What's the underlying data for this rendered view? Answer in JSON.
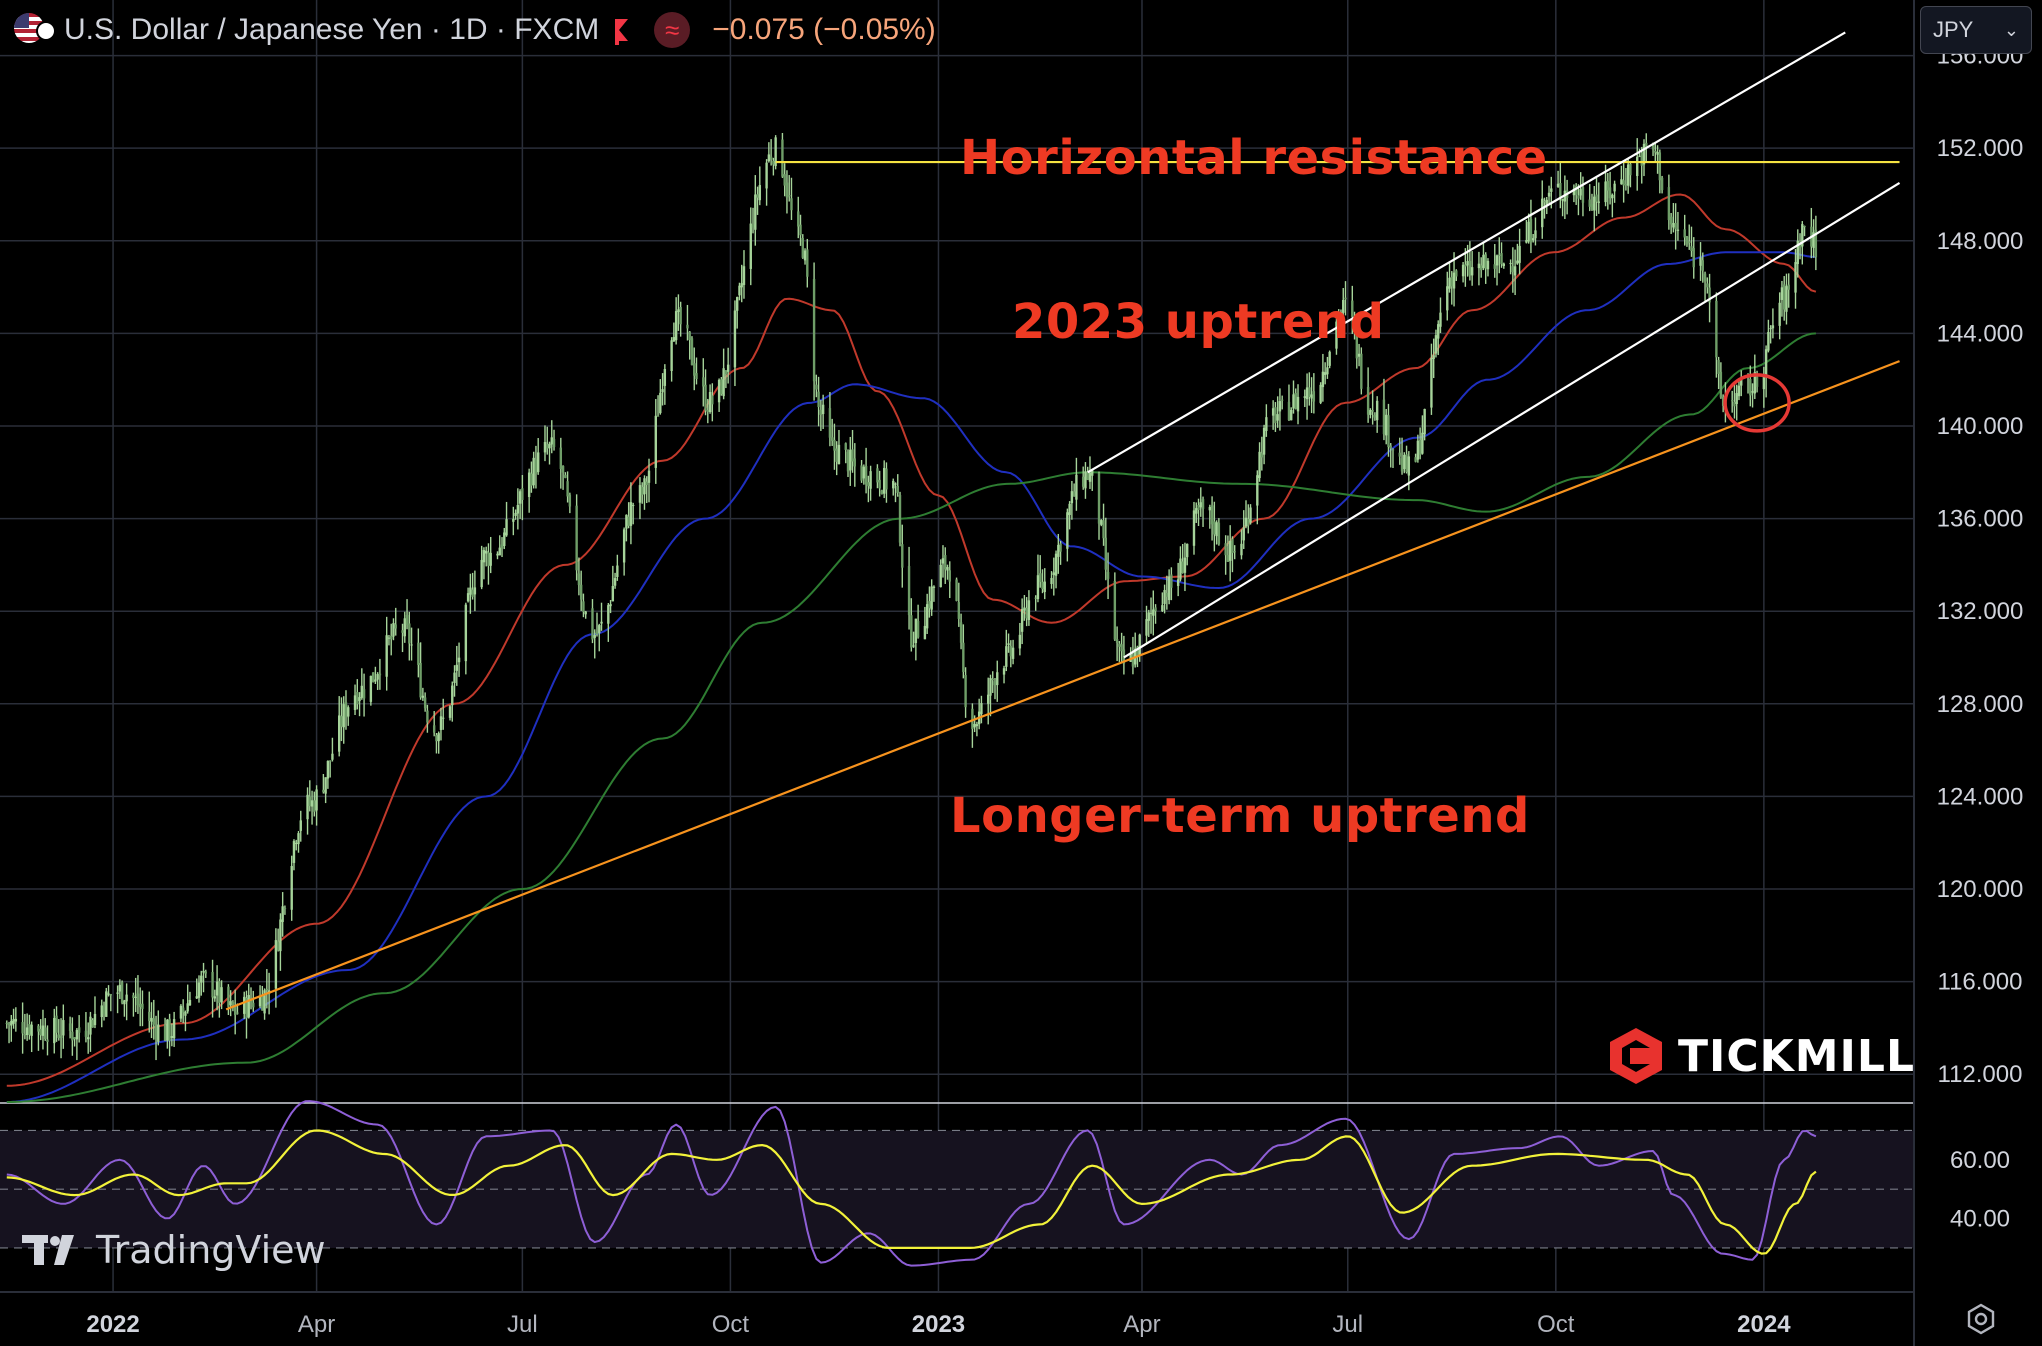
{
  "header": {
    "title": "U.S. Dollar / Japanese Yen · 1D · FXCM",
    "change": "−0.075 (−0.05%)",
    "indicator_glyph": "≈"
  },
  "currency_select": {
    "value": "JPY",
    "chevron": "⌄"
  },
  "annotations": {
    "horizontal_resistance": "Horizontal resistance",
    "uptrend_2023": "2023 uptrend",
    "longer_term_uptrend": "Longer-term uptrend"
  },
  "branding": {
    "tickmill": "TICKMILL",
    "tradingview": "TradingView"
  },
  "colors": {
    "background": "#000000",
    "candle": "#a6d49a",
    "ma_fast": "#c0392b",
    "ma_mid": "#1f2fbf",
    "ma_slow": "#2e7d32",
    "trend_long": "#f7931e",
    "resistance": "#f5e342",
    "channel": "#ffffff",
    "rsi": "#8e5fd6",
    "rsi_signal": "#f2f23a",
    "circle": "#e53935",
    "annotation": "#ee3a23"
  },
  "chart_data": {
    "type": "candlestick",
    "symbol": "USDJPY",
    "interval": "1D",
    "x_ticks": [
      "2022",
      "Apr",
      "Jul",
      "Oct",
      "2023",
      "Apr",
      "Jul",
      "Oct",
      "2024"
    ],
    "y_ticks": [
      "156.000",
      "152.000",
      "148.000",
      "144.000",
      "140.000",
      "136.000",
      "132.000",
      "128.000",
      "124.000",
      "120.000",
      "116.000",
      "112.000"
    ],
    "ylim": [
      110.8,
      158.4
    ],
    "x_range": [
      "2021-11-12",
      "2024-05-03"
    ],
    "price_path": [
      [
        "2021-11-15",
        114.2
      ],
      [
        "2021-12-15",
        113.8
      ],
      [
        "2022-01-04",
        115.6
      ],
      [
        "2022-01-25",
        113.8
      ],
      [
        "2022-02-10",
        116.0
      ],
      [
        "2022-02-24",
        114.7
      ],
      [
        "2022-03-07",
        115.3
      ],
      [
        "2022-03-28",
        123.6
      ],
      [
        "2022-04-20",
        128.6
      ],
      [
        "2022-05-09",
        131.2
      ],
      [
        "2022-05-24",
        126.9
      ],
      [
        "2022-06-15",
        134.4
      ],
      [
        "2022-07-14",
        139.0
      ],
      [
        "2022-08-02",
        131.0
      ],
      [
        "2022-08-22",
        137.0
      ],
      [
        "2022-09-07",
        144.5
      ],
      [
        "2022-09-22",
        141.0
      ],
      [
        "2022-10-21",
        151.9
      ],
      [
        "2022-11-01",
        148.0
      ],
      [
        "2022-11-10",
        140.5
      ],
      [
        "2022-11-15",
        139.0
      ],
      [
        "2022-11-29",
        138.0
      ],
      [
        "2022-12-12",
        137.5
      ],
      [
        "2022-12-20",
        131.0
      ],
      [
        "2023-01-05",
        134.0
      ],
      [
        "2023-01-16",
        127.2
      ],
      [
        "2023-01-31",
        130.0
      ],
      [
        "2023-02-14",
        133.0
      ],
      [
        "2023-03-08",
        137.9
      ],
      [
        "2023-03-24",
        129.7
      ],
      [
        "2023-04-13",
        133.0
      ],
      [
        "2023-04-28",
        136.3
      ],
      [
        "2023-05-11",
        134.5
      ],
      [
        "2023-05-30",
        140.5
      ],
      [
        "2023-06-15",
        141.5
      ],
      [
        "2023-06-30",
        145.1
      ],
      [
        "2023-07-11",
        141.0
      ],
      [
        "2023-07-28",
        138.1
      ],
      [
        "2023-08-17",
        146.6
      ],
      [
        "2023-09-08",
        147.0
      ],
      [
        "2023-10-03",
        150.2
      ],
      [
        "2023-10-20",
        149.9
      ],
      [
        "2023-11-13",
        151.9
      ],
      [
        "2023-11-22",
        148.5
      ],
      [
        "2023-12-05",
        147.0
      ],
      [
        "2023-12-14",
        141.0
      ],
      [
        "2023-12-27",
        141.7
      ],
      [
        "2024-01-10",
        145.5
      ],
      [
        "2024-01-19",
        148.6
      ],
      [
        "2024-01-24",
        147.8
      ]
    ],
    "moving_averages": [
      {
        "role": "fast",
        "points": [
          [
            "2021-11-15",
            111.5
          ],
          [
            "2022-02-01",
            114.2
          ],
          [
            "2022-04-01",
            118.5
          ],
          [
            "2022-06-01",
            128.0
          ],
          [
            "2022-07-20",
            134.0
          ],
          [
            "2022-09-01",
            138.5
          ],
          [
            "2022-10-06",
            142.5
          ],
          [
            "2022-10-26",
            145.5
          ],
          [
            "2022-11-15",
            145.0
          ],
          [
            "2022-12-05",
            141.5
          ],
          [
            "2023-01-01",
            137.0
          ],
          [
            "2023-01-25",
            132.5
          ],
          [
            "2023-02-20",
            131.5
          ],
          [
            "2023-03-25",
            133.3
          ],
          [
            "2023-04-20",
            133.5
          ],
          [
            "2023-05-25",
            136.0
          ],
          [
            "2023-06-30",
            141.0
          ],
          [
            "2023-07-31",
            142.5
          ],
          [
            "2023-08-25",
            145.0
          ],
          [
            "2023-09-30",
            147.5
          ],
          [
            "2023-10-31",
            149.0
          ],
          [
            "2023-11-25",
            150.0
          ],
          [
            "2023-12-15",
            148.5
          ],
          [
            "2024-01-10",
            147.0
          ],
          [
            "2024-01-24",
            145.8
          ]
        ]
      },
      {
        "role": "mid",
        "points": [
          [
            "2021-11-15",
            110.8
          ],
          [
            "2022-02-01",
            113.5
          ],
          [
            "2022-04-15",
            116.5
          ],
          [
            "2022-06-15",
            124.0
          ],
          [
            "2022-08-01",
            131.0
          ],
          [
            "2022-09-20",
            136.0
          ],
          [
            "2022-11-05",
            141.0
          ],
          [
            "2022-11-25",
            141.8
          ],
          [
            "2022-12-25",
            141.2
          ],
          [
            "2023-01-31",
            138.0
          ],
          [
            "2023-03-01",
            134.8
          ],
          [
            "2023-04-01",
            133.5
          ],
          [
            "2023-05-05",
            133.0
          ],
          [
            "2023-06-15",
            136.0
          ],
          [
            "2023-08-01",
            139.5
          ],
          [
            "2023-09-01",
            142.0
          ],
          [
            "2023-10-15",
            145.0
          ],
          [
            "2023-11-20",
            147.0
          ],
          [
            "2023-12-15",
            147.5
          ],
          [
            "2024-01-10",
            147.5
          ],
          [
            "2024-01-24",
            147.3
          ]
        ]
      },
      {
        "role": "slow",
        "points": [
          [
            "2021-11-15",
            110.8
          ],
          [
            "2022-03-01",
            112.5
          ],
          [
            "2022-05-01",
            115.5
          ],
          [
            "2022-07-01",
            120.0
          ],
          [
            "2022-09-01",
            126.5
          ],
          [
            "2022-10-15",
            131.5
          ],
          [
            "2022-12-15",
            136.0
          ],
          [
            "2023-02-01",
            137.5
          ],
          [
            "2023-03-08",
            138.0
          ],
          [
            "2023-05-15",
            137.5
          ],
          [
            "2023-07-31",
            136.8
          ],
          [
            "2023-08-31",
            136.3
          ],
          [
            "2023-10-15",
            137.8
          ],
          [
            "2023-11-30",
            140.5
          ],
          [
            "2023-12-25",
            142.5
          ],
          [
            "2024-01-24",
            144.0
          ]
        ]
      }
    ],
    "trendlines": [
      {
        "role": "resistance",
        "start": [
          "2022-10-21",
          151.4
        ],
        "end": [
          "2024-03-01",
          151.4
        ]
      },
      {
        "role": "channel_upper",
        "start": [
          "2023-03-08",
          138.0
        ],
        "end": [
          "2024-02-06",
          157.0
        ]
      },
      {
        "role": "channel_lower",
        "start": [
          "2023-03-24",
          130.0
        ],
        "end": [
          "2024-03-01",
          150.5
        ]
      },
      {
        "role": "longer_term_uptrend",
        "start": [
          "2022-02-20",
          114.8
        ],
        "end": [
          "2024-03-01",
          142.8
        ]
      }
    ],
    "highlight_circle": {
      "center": [
        "2023-12-29",
        141.0
      ]
    },
    "rsi_panel": {
      "y_ticks": [
        "60.00",
        "40.00"
      ],
      "ylim": [
        15,
        79
      ],
      "levels": [
        70,
        50,
        30
      ],
      "rsi_path": [
        [
          "2021-11-15",
          55
        ],
        [
          "2021-12-10",
          45
        ],
        [
          "2022-01-04",
          60
        ],
        [
          "2022-01-25",
          40
        ],
        [
          "2022-02-10",
          58
        ],
        [
          "2022-02-24",
          45
        ],
        [
          "2022-03-28",
          80
        ],
        [
          "2022-04-28",
          72
        ],
        [
          "2022-05-24",
          38
        ],
        [
          "2022-06-15",
          68
        ],
        [
          "2022-07-14",
          70
        ],
        [
          "2022-08-02",
          32
        ],
        [
          "2022-08-25",
          55
        ],
        [
          "2022-09-07",
          72
        ],
        [
          "2022-09-22",
          48
        ],
        [
          "2022-10-21",
          78
        ],
        [
          "2022-11-10",
          25
        ],
        [
          "2022-12-01",
          35
        ],
        [
          "2022-12-20",
          24
        ],
        [
          "2023-01-16",
          26
        ],
        [
          "2023-02-10",
          45
        ],
        [
          "2023-03-08",
          70
        ],
        [
          "2023-03-24",
          38
        ],
        [
          "2023-05-01",
          60
        ],
        [
          "2023-05-15",
          55
        ],
        [
          "2023-06-01",
          65
        ],
        [
          "2023-06-30",
          74
        ],
        [
          "2023-07-28",
          33
        ],
        [
          "2023-08-17",
          62
        ],
        [
          "2023-09-15",
          64
        ],
        [
          "2023-10-03",
          68
        ],
        [
          "2023-10-20",
          58
        ],
        [
          "2023-11-13",
          63
        ],
        [
          "2023-11-22",
          48
        ],
        [
          "2023-12-14",
          28
        ],
        [
          "2023-12-27",
          26
        ],
        [
          "2024-01-10",
          60
        ],
        [
          "2024-01-19",
          70
        ],
        [
          "2024-01-24",
          68
        ]
      ],
      "signal_path": [
        [
          "2021-11-15",
          54
        ],
        [
          "2021-12-15",
          48
        ],
        [
          "2022-01-10",
          55
        ],
        [
          "2022-01-30",
          48
        ],
        [
          "2022-02-20",
          52
        ],
        [
          "2022-03-01",
          52
        ],
        [
          "2022-04-01",
          70
        ],
        [
          "2022-05-01",
          62
        ],
        [
          "2022-05-31",
          48
        ],
        [
          "2022-06-25",
          58
        ],
        [
          "2022-07-20",
          65
        ],
        [
          "2022-08-10",
          48
        ],
        [
          "2022-09-05",
          62
        ],
        [
          "2022-09-25",
          60
        ],
        [
          "2022-10-15",
          65
        ],
        [
          "2022-11-10",
          45
        ],
        [
          "2022-12-10",
          30
        ],
        [
          "2023-01-15",
          30
        ],
        [
          "2023-02-15",
          38
        ],
        [
          "2023-03-10",
          58
        ],
        [
          "2023-04-01",
          45
        ],
        [
          "2023-05-10",
          55
        ],
        [
          "2023-06-10",
          60
        ],
        [
          "2023-07-01",
          68
        ],
        [
          "2023-07-25",
          42
        ],
        [
          "2023-08-25",
          58
        ],
        [
          "2023-10-01",
          62
        ],
        [
          "2023-11-10",
          60
        ],
        [
          "2023-11-28",
          55
        ],
        [
          "2023-12-15",
          38
        ],
        [
          "2024-01-01",
          28
        ],
        [
          "2024-01-15",
          45
        ],
        [
          "2024-01-24",
          56
        ]
      ]
    }
  }
}
